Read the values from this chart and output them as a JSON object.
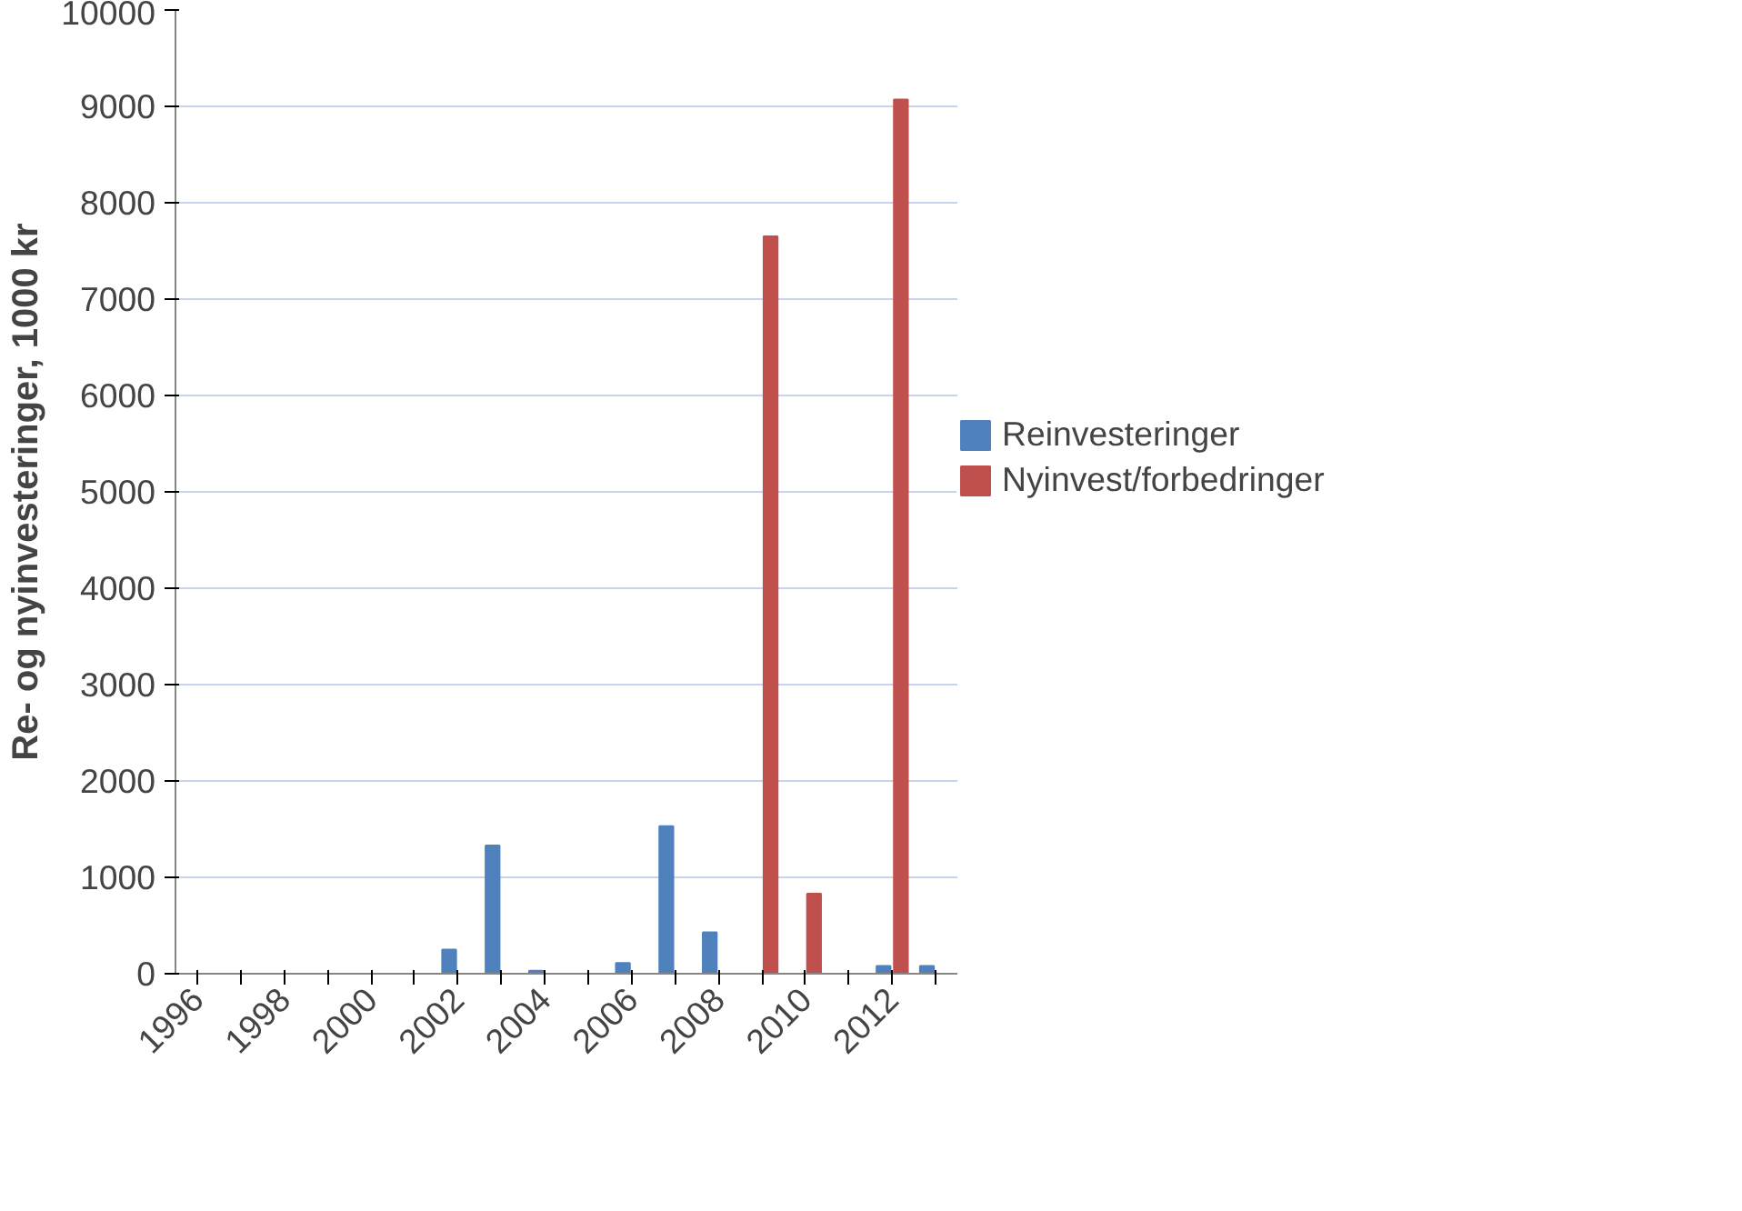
{
  "chart_data": {
    "type": "bar",
    "ylabel": "Re- og nyinvesteringer, 1000 kr",
    "categories": [
      "1996",
      null,
      "1998",
      null,
      "2000",
      null,
      "2002",
      null,
      "2004",
      null,
      "2006",
      null,
      "2008",
      null,
      "2010",
      null,
      "2012",
      null
    ],
    "series": [
      {
        "name": "Reinvesteringer",
        "color": "#4f81bd",
        "values": [
          0,
          0,
          0,
          0,
          0,
          0,
          250,
          1330,
          30,
          0,
          110,
          1530,
          430,
          null,
          0,
          0,
          80,
          80
        ]
      },
      {
        "name": "Nyinvest/forbedringer",
        "color": "#c0504d",
        "values": [
          0,
          0,
          0,
          0,
          0,
          0,
          0,
          0,
          0,
          0,
          0,
          0,
          0,
          7650,
          830,
          0,
          9070,
          0
        ]
      }
    ],
    "ylim": [
      0,
      10000
    ],
    "yticks": [
      0,
      1000,
      2000,
      3000,
      4000,
      5000,
      6000,
      7000,
      8000,
      9000,
      10000
    ],
    "grid": "y",
    "legend": "right"
  }
}
